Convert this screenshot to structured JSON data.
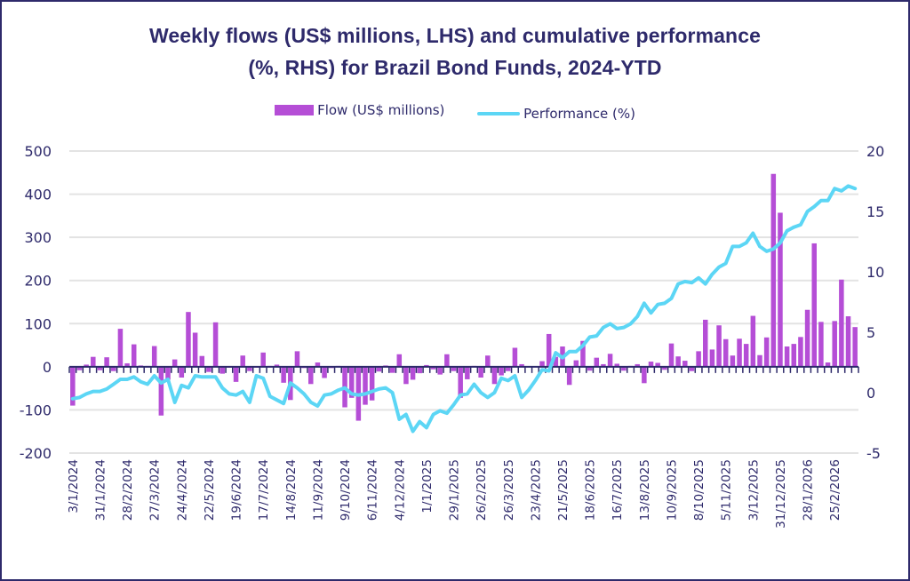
{
  "chart_data": {
    "type": "bar+line",
    "title_line1": "Weekly flows (US$ millions, LHS) and cumulative performance",
    "title_line2": "(%, RHS) for Brazil Bond Funds, 2024-YTD",
    "legend": {
      "position": "top-center",
      "entries": [
        {
          "name": "Flow (US$ millions)",
          "kind": "bar",
          "color": "#b54ed6"
        },
        {
          "name": "Performance (%)",
          "kind": "line",
          "color": "#5cd6f5"
        }
      ]
    },
    "y_left": {
      "label": "Flow (US$ millions)",
      "range": [
        -200,
        500
      ],
      "ticks": [
        "-200",
        "-100",
        "0",
        "100",
        "200",
        "300",
        "400",
        "500"
      ],
      "tick_values": [
        -200,
        -100,
        0,
        100,
        200,
        300,
        400,
        500
      ]
    },
    "y_right": {
      "label": "Performance (%)",
      "range": [
        -5,
        20
      ],
      "ticks": [
        "-5",
        "0",
        "5",
        "10",
        "15",
        "20"
      ],
      "tick_values": [
        -5,
        0,
        5,
        10,
        15,
        20
      ]
    },
    "grid": true,
    "x_tick_labels": [
      "3/1/2024",
      "31/1/2024",
      "28/2/2024",
      "27/3/2024",
      "24/4/2024",
      "22/5/2024",
      "19/6/2024",
      "17/7/2024",
      "14/8/2024",
      "11/9/2024",
      "9/10/2024",
      "6/11/2024",
      "4/12/2024",
      "1/1/2025",
      "29/1/2025",
      "26/2/2025",
      "26/3/2025",
      "23/4/2025",
      "21/5/2025",
      "18/6/2025",
      "16/7/2025",
      "13/8/2025",
      "10/9/2025",
      "8/10/2025",
      "5/11/2025",
      "3/12/2025",
      "31/12/2025",
      "28/1/2026",
      "25/2/2026"
    ],
    "x_tick_every": 4,
    "series": [
      {
        "name": "Flow (US$ millions)",
        "type": "bar",
        "axis": "left",
        "color": "#b54ed6",
        "values": [
          -90,
          -8,
          5,
          23,
          -8,
          22,
          -10,
          88,
          8,
          52,
          3,
          2,
          48,
          -113,
          -30,
          17,
          -25,
          127,
          79,
          25,
          -12,
          103,
          -16,
          -2,
          -35,
          26,
          -10,
          -2,
          33,
          2,
          5,
          -37,
          -77,
          36,
          -3,
          -40,
          10,
          -26,
          -3,
          2,
          -94,
          -72,
          -125,
          -88,
          -78,
          -11,
          3,
          -14,
          29,
          -40,
          -30,
          -15,
          4,
          -6,
          -18,
          29,
          -10,
          -72,
          -29,
          2,
          -25,
          26,
          -40,
          -20,
          -10,
          44,
          6,
          0,
          0,
          13,
          76,
          23,
          47,
          -42,
          15,
          60,
          -9,
          21,
          6,
          30,
          7,
          -9,
          2,
          6,
          -38,
          12,
          9,
          -7,
          54,
          24,
          14,
          -10,
          36,
          109,
          40,
          96,
          64,
          26,
          65,
          53,
          118,
          27,
          68,
          447,
          357,
          47,
          53,
          69,
          132,
          286,
          104,
          10,
          106,
          202,
          117,
          92
        ]
      },
      {
        "name": "Performance (%)",
        "type": "line",
        "axis": "right",
        "color": "#5cd6f5",
        "values": [
          -0.5,
          -0.4,
          -0.1,
          0.1,
          0.1,
          0.3,
          0.7,
          1.1,
          1.1,
          1.3,
          0.9,
          0.7,
          1.4,
          0.8,
          1.1,
          -0.8,
          0.6,
          0.4,
          1.4,
          1.3,
          1.3,
          1.3,
          0.4,
          -0.1,
          -0.2,
          0.1,
          -0.8,
          1.4,
          1.2,
          -0.3,
          -0.6,
          -0.9,
          0.8,
          0.4,
          -0.1,
          -0.8,
          -1.1,
          -0.2,
          -0.1,
          0.2,
          0.4,
          -0.1,
          -0.2,
          -0.1,
          0.1,
          0.3,
          0.4,
          0.0,
          -2.2,
          -1.8,
          -3.2,
          -2.4,
          -2.9,
          -1.8,
          -1.5,
          -1.7,
          -1.0,
          -0.2,
          -0.1,
          0.7,
          0.0,
          -0.4,
          0.0,
          1.2,
          1.0,
          1.4,
          -0.4,
          0.2,
          1.0,
          1.9,
          1.8,
          3.3,
          2.9,
          3.4,
          3.4,
          3.9,
          4.6,
          4.7,
          5.4,
          5.7,
          5.3,
          5.4,
          5.7,
          6.3,
          7.4,
          6.6,
          7.3,
          7.4,
          7.8,
          9.0,
          9.2,
          9.1,
          9.5,
          9.0,
          9.8,
          10.4,
          10.7,
          12.1,
          12.1,
          12.4,
          13.2,
          12.1,
          11.7,
          11.9,
          12.4,
          13.4,
          13.7,
          13.9,
          15.0,
          15.4,
          15.9,
          15.9,
          16.9,
          16.7,
          17.1,
          16.9
        ]
      }
    ],
    "n_weeks": 116,
    "xlabel": "",
    "ylabel_left": "",
    "ylabel_right": ""
  }
}
